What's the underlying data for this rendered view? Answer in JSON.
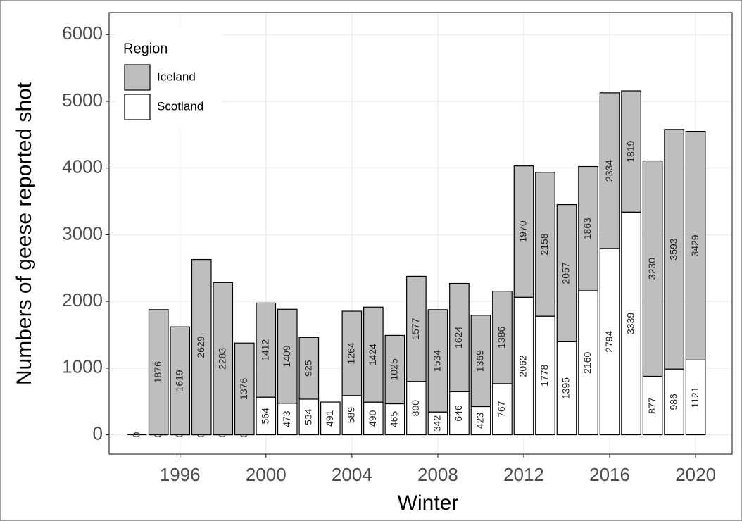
{
  "chart_data": {
    "type": "stacked_bar",
    "x_label": "Winter",
    "y_label": "Numbers of geese reported shot",
    "legend_title": "Region",
    "legend_position": "top-left",
    "grid": true,
    "x": [
      1994,
      1995,
      1996,
      1997,
      1998,
      1999,
      2000,
      2001,
      2002,
      2003,
      2004,
      2005,
      2006,
      2007,
      2008,
      2009,
      2010,
      2011,
      2012,
      2013,
      2014,
      2015,
      2016,
      2017,
      2018,
      2019,
      2020
    ],
    "xlim": [
      1992.7,
      2021.7
    ],
    "xticks": [
      1996,
      2000,
      2004,
      2008,
      2012,
      2016,
      2020
    ],
    "ylim": [
      -290,
      6330
    ],
    "yticks": [
      0,
      1000,
      2000,
      3000,
      4000,
      5000,
      6000
    ],
    "series": [
      {
        "name": "Scotland",
        "color": "#ffffff",
        "values": [
          0,
          0,
          0,
          0,
          0,
          0,
          564,
          473,
          534,
          491,
          589,
          490,
          465,
          800,
          342,
          646,
          423,
          767,
          2062,
          1778,
          1395,
          2160,
          2794,
          3339,
          877,
          986,
          1121
        ]
      },
      {
        "name": "Iceland",
        "color": "#bebebe",
        "values": [
          null,
          1876,
          1619,
          2629,
          2283,
          1376,
          1412,
          1409,
          925,
          null,
          1264,
          1424,
          1025,
          1577,
          1534,
          1624,
          1369,
          1386,
          1970,
          2158,
          2057,
          1863,
          2334,
          1819,
          3230,
          3593,
          3429
        ]
      }
    ]
  }
}
